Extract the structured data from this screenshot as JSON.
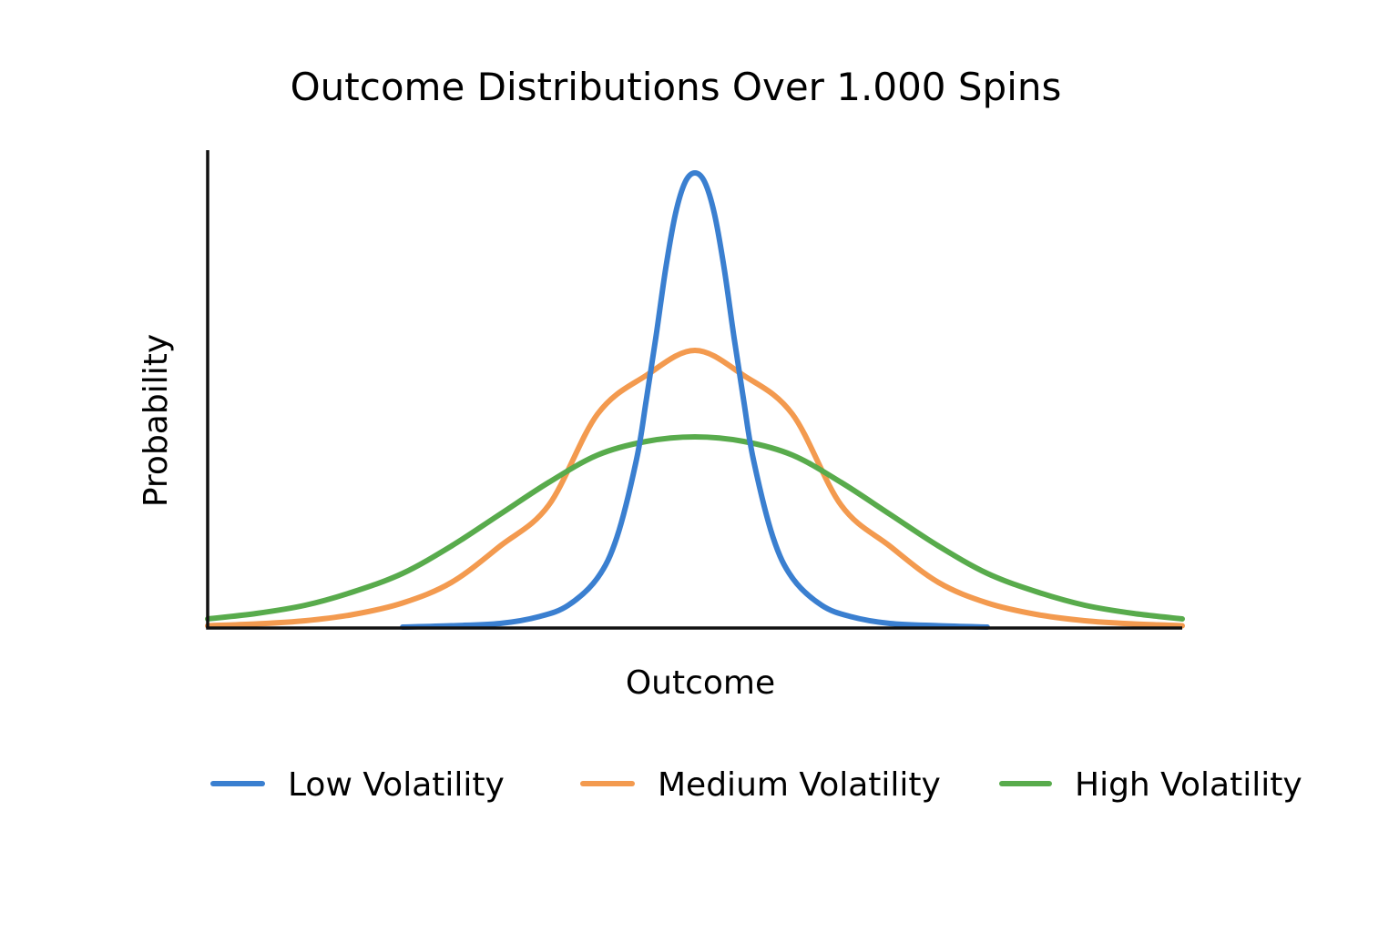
{
  "colors": {
    "low": "#3a7fd0",
    "medium": "#f39a4f",
    "high": "#58ab4c",
    "axis": "#111111",
    "background": "#ffffff"
  },
  "chart_data": {
    "type": "line",
    "title": "Outcome Distributions Over 1.000 Spins",
    "xlabel": "Outcome",
    "ylabel": "Probability",
    "xlim": [
      -5,
      5
    ],
    "ylim": [
      0,
      1.05
    ],
    "grid": false,
    "legend_position": "bottom",
    "x_ticks": [],
    "y_ticks": [],
    "series": [
      {
        "name": "Low Volatility",
        "color": "#3a7fd0",
        "x": [
          -3.0,
          -2.5,
          -2.0,
          -1.6,
          -1.3,
          -1.0,
          -0.8,
          -0.6,
          -0.5,
          -0.4,
          -0.3,
          -0.2,
          -0.1,
          0,
          0.1,
          0.2,
          0.3,
          0.4,
          0.5,
          0.6,
          0.8,
          1.0,
          1.3,
          1.6,
          2.0,
          2.5,
          3.0
        ],
        "values": [
          0.002,
          0.005,
          0.01,
          0.025,
          0.05,
          0.11,
          0.2,
          0.37,
          0.5,
          0.64,
          0.79,
          0.91,
          0.98,
          1.0,
          0.98,
          0.91,
          0.79,
          0.64,
          0.5,
          0.37,
          0.2,
          0.11,
          0.05,
          0.025,
          0.01,
          0.005,
          0.002
        ]
      },
      {
        "name": "Medium Volatility",
        "color": "#f39a4f",
        "x": [
          -5.0,
          -4.5,
          -4.0,
          -3.5,
          -3.0,
          -2.5,
          -2.0,
          -1.5,
          -1.0,
          -0.5,
          0,
          0.5,
          1.0,
          1.5,
          2.0,
          2.5,
          3.0,
          3.5,
          4.0,
          4.5,
          5.0
        ],
        "values": [
          0.005,
          0.009,
          0.016,
          0.03,
          0.055,
          0.1,
          0.18,
          0.27,
          0.47,
          0.555,
          0.61,
          0.555,
          0.47,
          0.27,
          0.18,
          0.1,
          0.055,
          0.03,
          0.016,
          0.009,
          0.005
        ]
      },
      {
        "name": "High Volatility",
        "color": "#58ab4c",
        "x": [
          -5.0,
          -4.5,
          -4.0,
          -3.5,
          -3.0,
          -2.5,
          -2.0,
          -1.5,
          -1.0,
          -0.5,
          0,
          0.5,
          1.0,
          1.5,
          2.0,
          2.5,
          3.0,
          3.5,
          4.0,
          4.5,
          5.0
        ],
        "values": [
          0.02,
          0.032,
          0.05,
          0.08,
          0.12,
          0.18,
          0.25,
          0.32,
          0.38,
          0.41,
          0.42,
          0.41,
          0.38,
          0.32,
          0.25,
          0.18,
          0.12,
          0.08,
          0.05,
          0.032,
          0.02
        ]
      }
    ]
  }
}
